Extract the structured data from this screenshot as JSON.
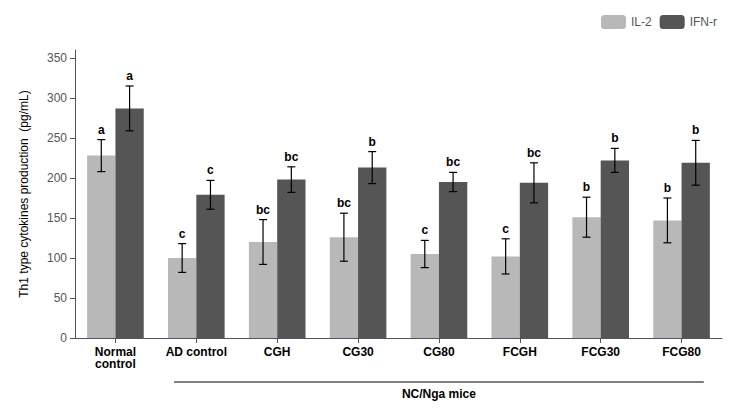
{
  "chart_data": {
    "type": "bar",
    "categories": [
      "Normal\ncontrol",
      "AD control",
      "CGH",
      "CG30",
      "CG80",
      "FCGH",
      "FCG30",
      "FCG80"
    ],
    "series": [
      {
        "name": "IL-2",
        "color": "#b8b8b8",
        "values": [
          228,
          100,
          120,
          126,
          105,
          102,
          151,
          147
        ],
        "errors": [
          20,
          18,
          28,
          30,
          17,
          22,
          25,
          28
        ],
        "labels": [
          "a",
          "c",
          "bc",
          "bc",
          "c",
          "c",
          "b",
          "b"
        ]
      },
      {
        "name": "IFN-r",
        "color": "#555555",
        "values": [
          287,
          179,
          198,
          213,
          195,
          194,
          222,
          219
        ],
        "errors": [
          28,
          18,
          16,
          20,
          12,
          25,
          15,
          28
        ],
        "labels": [
          "a",
          "c",
          "bc",
          "b",
          "bc",
          "bc",
          "b",
          "b"
        ]
      }
    ],
    "ylabel": "Th1 type cytokines production  (pg/mL)",
    "ylim": [
      0,
      360
    ],
    "yticks": [
      0,
      50,
      100,
      150,
      200,
      250,
      300,
      350
    ],
    "grid": false,
    "legend": "upper right",
    "bracket": {
      "text": "NC/Nga mice",
      "from": "AD control",
      "to": "FCG80"
    }
  }
}
